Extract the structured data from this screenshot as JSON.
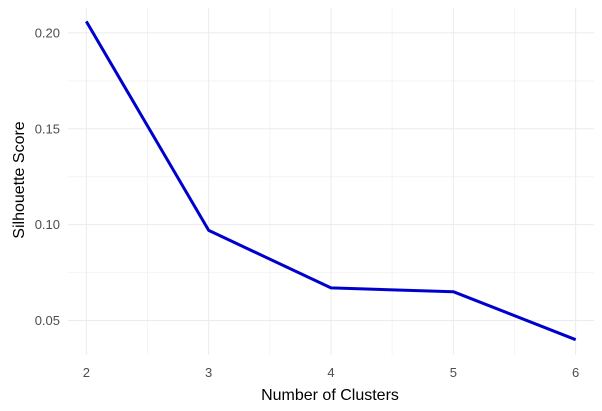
{
  "chart_data": {
    "type": "line",
    "title": "",
    "xlabel": "Number of Clusters",
    "ylabel": "Silhouette Score",
    "x": [
      2,
      3,
      4,
      5,
      6
    ],
    "series": [
      {
        "values": [
          0.206,
          0.097,
          0.067,
          0.065,
          0.04
        ]
      }
    ],
    "xticks": [
      "2",
      "3",
      "4",
      "5",
      "6"
    ],
    "yticks": [
      "0.05",
      "0.10",
      "0.15",
      "0.20"
    ],
    "xlim": [
      1.85,
      6.15
    ],
    "ylim": [
      0.032,
      0.213
    ],
    "grid": true,
    "legend": "none",
    "colors": {
      "line": "#0000CD",
      "grid": "#ebebeb",
      "tick_text": "#4d4d4d"
    }
  }
}
